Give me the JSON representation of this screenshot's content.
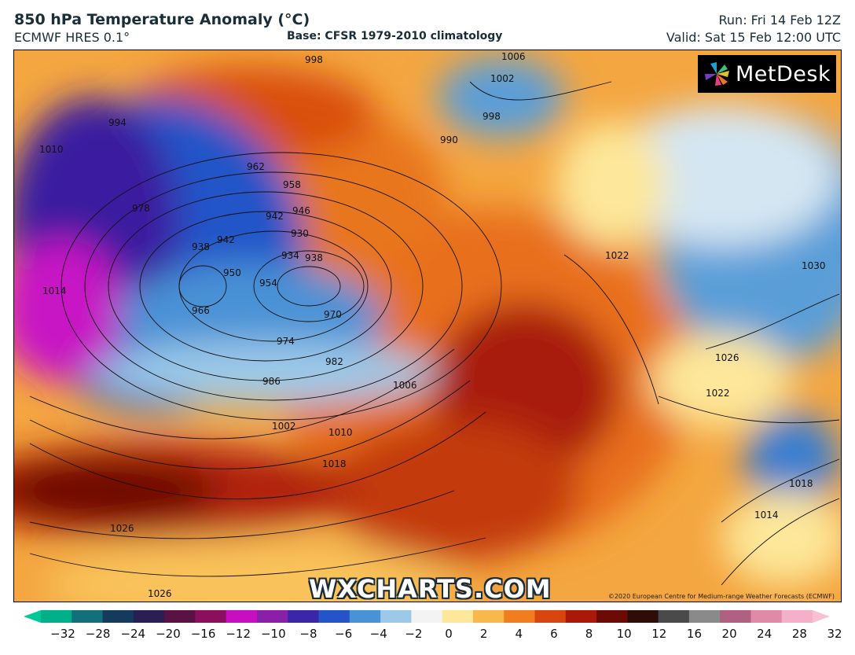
{
  "header": {
    "title": "850 hPa Temperature Anomaly (°C)",
    "model": "ECMWF HRES 0.1°",
    "base": "Base: CFSR 1979-2010 climatology",
    "run": "Run: Fri 14 Feb 12Z",
    "valid": "Valid: Sat 15 Feb 12:00 UTC"
  },
  "logo": {
    "text": "MetDesk",
    "icon": "metdesk-pinwheel-icon"
  },
  "watermark": "WXCHARTS.COM",
  "copyright": "©2020 European Centre for Medium-range Weather Forecasts (ECMWF)",
  "isobar_labels": [
    "998",
    "1006",
    "1002",
    "998",
    "990",
    "994",
    "1010",
    "978",
    "962",
    "958",
    "946",
    "942",
    "930",
    "938",
    "934",
    "938",
    "942",
    "950",
    "954",
    "1014",
    "966",
    "970",
    "974",
    "982",
    "986",
    "1006",
    "1002",
    "1010",
    "1018",
    "1026",
    "1026",
    "1022",
    "1030",
    "1026",
    "1022",
    "1018",
    "1014"
  ],
  "colorbar": {
    "ticks": [
      "−32",
      "−28",
      "−24",
      "−20",
      "−16",
      "−12",
      "−10",
      "−8",
      "−6",
      "−4",
      "−2",
      "0",
      "2",
      "4",
      "6",
      "8",
      "10",
      "12",
      "16",
      "20",
      "24",
      "28",
      "32"
    ],
    "colors": [
      "#00b08a",
      "#12707a",
      "#143a5c",
      "#2a1f55",
      "#5a1245",
      "#8c0f5e",
      "#c80fc0",
      "#8a1fa8",
      "#3b25a8",
      "#2455c8",
      "#4a92d6",
      "#9cc9e8",
      "#f3f3f3",
      "#fde79a",
      "#f9b84c",
      "#f07e1e",
      "#d9450f",
      "#a8190a",
      "#6c0a05",
      "#2e0d08",
      "#4a4a4a",
      "#8a8a8a",
      "#b06080",
      "#e08aa8",
      "#f4b0c8"
    ],
    "min_color": "#00c896",
    "max_color": "#f8c0d0"
  }
}
